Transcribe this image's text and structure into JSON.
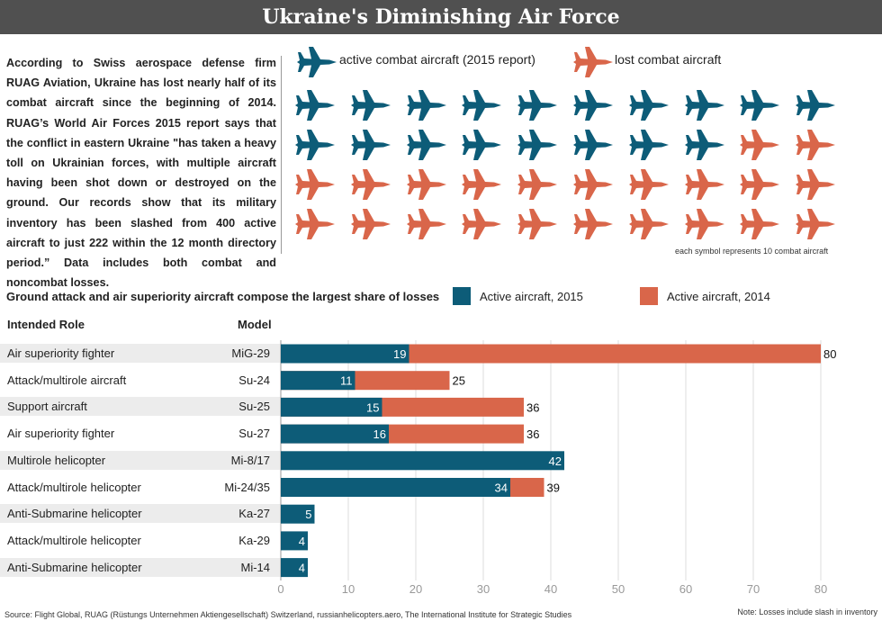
{
  "title": "Ukraine's Diminishing Air Force",
  "intro": "According to Swiss aerospace defense firm RUAG Aviation, Ukraine has lost nearly half of its combat aircraft since the beginning of 2014. RUAG’s World Air Forces 2015 report says that the conflict in eastern Ukraine \"has taken a heavy toll on Ukrainian forces, with multiple aircraft having been shot down or destroyed on the ground. Our records show that its military inventory has been slashed from 400 active aircraft to just 222 within the 12 month directory period.” Data includes both combat and noncombat losses.",
  "pictogram": {
    "legend_active": "active combat aircraft (2015 report)",
    "legend_lost": "lost combat aircraft",
    "active_count": 18,
    "total_count": 40,
    "note": "each symbol represents 10 combat aircraft",
    "icon": "fighter-jet-icon"
  },
  "colors": {
    "active": "#0d5c78",
    "lost": "#d9664a",
    "row_shade": "#ececec",
    "banner": "#505050"
  },
  "chart_heading": "Ground attack and air superiority aircraft compose the largest share of losses",
  "legend": {
    "active_2015": "Active aircraft, 2015",
    "active_2014": "Active aircraft, 2014"
  },
  "columns": {
    "role": "Intended Role",
    "model": "Model"
  },
  "chart_data": {
    "type": "bar",
    "orientation": "horizontal",
    "stacked": "overlay",
    "categories": [
      "MiG-29",
      "Su-24",
      "Su-25",
      "Su-27",
      "Mi-8/17",
      "Mi-24/35",
      "Ka-27",
      "Ka-29",
      "Mi-14"
    ],
    "roles": [
      "Air superiority fighter",
      "Attack/multirole aircraft",
      "Support aircraft",
      "Air superiority fighter",
      "Multirole helicopter",
      "Attack/multirole helicopter",
      "Anti-Submarine helicopter",
      "Attack/multirole helicopter",
      "Anti-Submarine helicopter"
    ],
    "series": [
      {
        "name": "Active aircraft, 2015",
        "values": [
          19,
          11,
          15,
          16,
          42,
          34,
          5,
          4,
          4
        ]
      },
      {
        "name": "Active aircraft, 2014",
        "values": [
          80,
          25,
          36,
          36,
          42,
          39,
          5,
          4,
          4
        ]
      }
    ],
    "xlim": [
      0,
      80
    ],
    "xticks": [
      "0",
      "10",
      "20",
      "30",
      "40",
      "50",
      "60",
      "70",
      "80"
    ],
    "grid": true,
    "legend_position": "top"
  },
  "source": "Source: Flight Global, RUAG (Rüstungs Unternehmen Aktiengesellschaft) Switzerland, russianhelicopters.aero, The International Institute for Strategic Studies",
  "note": "Note: Losses include slash in inventory"
}
